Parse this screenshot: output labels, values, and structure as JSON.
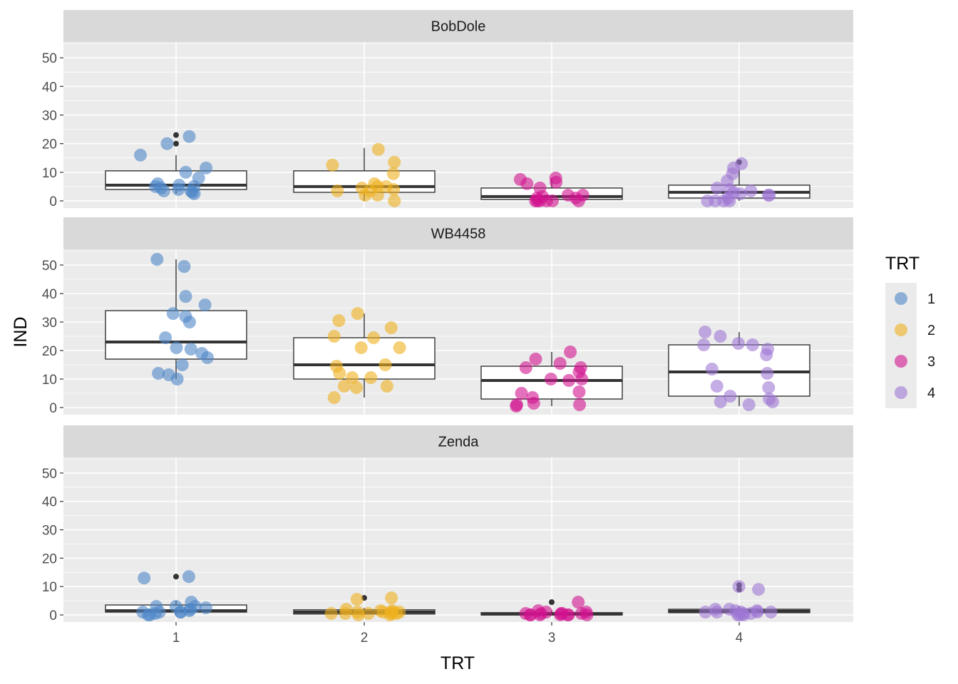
{
  "chart_data": {
    "type": "boxplot-with-jitter",
    "xlabel": "TRT",
    "ylabel": "IND",
    "categories": [
      "1",
      "2",
      "3",
      "4"
    ],
    "y_ticks": [
      0,
      10,
      20,
      30,
      40,
      50
    ],
    "ylim": [
      -2.5,
      55.5
    ],
    "grid": true,
    "legend": {
      "title": "TRT",
      "position": "right",
      "entries": [
        "1",
        "2",
        "3",
        "4"
      ]
    },
    "colors": {
      "1": "#4F87C8",
      "2": "#EEB01E",
      "3": "#D2128F",
      "4": "#9F77D3"
    },
    "panels": [
      {
        "name": "BobDole",
        "boxes": [
          {
            "trt": "1",
            "q1": 4,
            "median": 5.5,
            "q3": 10.5,
            "whisker_low": 2.5,
            "whisker_high": 16,
            "outliers": [
              20,
              23
            ]
          },
          {
            "trt": "2",
            "q1": 3,
            "median": 5,
            "q3": 10.5,
            "whisker_low": 0,
            "whisker_high": 18.5,
            "outliers": []
          },
          {
            "trt": "3",
            "q1": 0.5,
            "median": 1.5,
            "q3": 4.5,
            "whisker_low": 0,
            "whisker_high": 8,
            "outliers": []
          },
          {
            "trt": "4",
            "q1": 1,
            "median": 3,
            "q3": 5.5,
            "whisker_low": 0,
            "whisker_high": 11,
            "outliers": [
              13.5
            ]
          }
        ],
        "points": [
          {
            "trt": "1",
            "values": [
              16,
              11.5,
              4.5,
              5,
              3,
              4,
              3.5,
              5,
              2.5,
              5.5,
              22.5,
              10,
              8,
              6,
              20,
              3.5
            ]
          },
          {
            "trt": "2",
            "values": [
              18,
              12.5,
              5,
              4.5,
              13.5,
              5,
              3.5,
              2,
              0,
              2,
              6,
              3.5,
              4,
              9.5
            ]
          },
          {
            "trt": "3",
            "values": [
              1.5,
              4.5,
              1,
              0,
              6,
              0,
              0,
              1,
              2,
              8,
              2,
              0,
              7.5,
              0,
              6.5,
              0
            ]
          },
          {
            "trt": "4",
            "values": [
              11.5,
              4.5,
              2,
              0,
              4,
              1,
              3.5,
              2,
              2.5,
              0,
              9.5,
              0,
              0,
              3,
              7,
              13
            ]
          }
        ]
      },
      {
        "name": "WB4458",
        "boxes": [
          {
            "trt": "1",
            "q1": 17,
            "median": 23,
            "q3": 34,
            "whisker_low": 10,
            "whisker_high": 52,
            "outliers": []
          },
          {
            "trt": "2",
            "q1": 10,
            "median": 15,
            "q3": 24.5,
            "whisker_low": 3.5,
            "whisker_high": 33,
            "outliers": []
          },
          {
            "trt": "3",
            "q1": 3,
            "median": 9.5,
            "q3": 14.5,
            "whisker_low": 0.5,
            "whisker_high": 19.5,
            "outliers": []
          },
          {
            "trt": "4",
            "q1": 4,
            "median": 12.5,
            "q3": 22,
            "whisker_low": 0.5,
            "whisker_high": 26.5,
            "outliers": []
          }
        ],
        "points": [
          {
            "trt": "1",
            "values": [
              49.5,
              52,
              36,
              33,
              19,
              39,
              32,
              10,
              21,
              30,
              17.5,
              11.5,
              20.5,
              12,
              15,
              24.5
            ]
          },
          {
            "trt": "2",
            "values": [
              10.5,
              7,
              15,
              28,
              14.5,
              7.5,
              3.5,
              33,
              12,
              25,
              21,
              7.5,
              24.5,
              30.5,
              21,
              10.5
            ]
          },
          {
            "trt": "3",
            "values": [
              14,
              10,
              5.5,
              1,
              12.5,
              14,
              19.5,
              17,
              1,
              1.5,
              5,
              0.5,
              15.5,
              3.5,
              9.5,
              10
            ]
          },
          {
            "trt": "4",
            "values": [
              22,
              2,
              18.5,
              25,
              4,
              12,
              13.5,
              22.5,
              22,
              7,
              1,
              3,
              26.5,
              20.5,
              7.5,
              2
            ]
          }
        ]
      },
      {
        "name": "Zenda",
        "boxes": [
          {
            "trt": "1",
            "q1": 1,
            "median": 1.5,
            "q3": 3.5,
            "whisker_low": 0,
            "whisker_high": 5,
            "outliers": [
              13.5
            ]
          },
          {
            "trt": "2",
            "q1": 0.3,
            "median": 1,
            "q3": 1.8,
            "whisker_low": 0,
            "whisker_high": 2.5,
            "outliers": [
              6
            ]
          },
          {
            "trt": "3",
            "q1": 0,
            "median": 0.3,
            "q3": 0.8,
            "whisker_low": 0,
            "whisker_high": 1.5,
            "outliers": [
              4.5
            ]
          },
          {
            "trt": "4",
            "q1": 0.8,
            "median": 1.3,
            "q3": 2,
            "whisker_low": 0,
            "whisker_high": 3,
            "outliers": [
              9,
              10.5
            ]
          }
        ],
        "points": [
          {
            "trt": "1",
            "values": [
              1,
              13.5,
              1,
              3,
              0.5,
              1,
              13,
              3,
              2,
              4.5,
              3,
              1,
              0,
              2.5,
              0,
              1.5
            ]
          },
          {
            "trt": "2",
            "values": [
              1.5,
              0.5,
              1,
              0,
              1,
              0.5,
              1,
              0,
              2,
              1.5,
              6,
              5.5,
              0.5,
              1,
              0.5,
              0.5
            ]
          },
          {
            "trt": "3",
            "values": [
              0.5,
              0,
              0,
              0,
              0,
              1,
              0,
              1.5,
              1,
              0,
              0.5,
              4.5,
              0.5,
              0,
              0.5,
              0.5
            ]
          },
          {
            "trt": "4",
            "values": [
              10,
              0.5,
              9,
              1,
              0,
              1,
              1.5,
              2,
              0.5,
              1,
              0,
              0,
              1,
              2,
              1.5,
              1
            ]
          }
        ]
      }
    ]
  }
}
